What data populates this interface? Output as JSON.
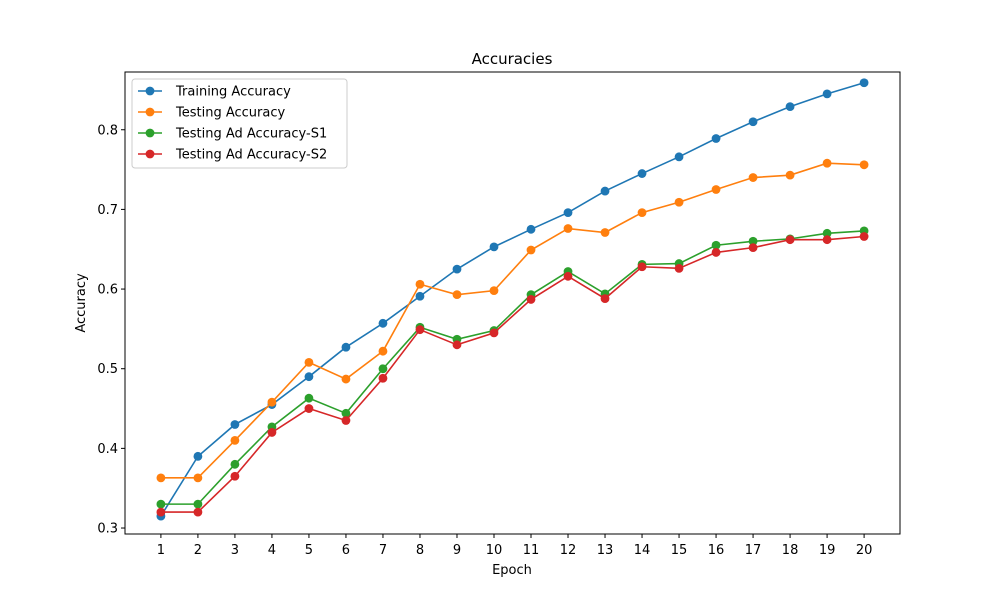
{
  "chart_data": {
    "type": "line",
    "title": "Accuracies",
    "xlabel": "Epoch",
    "ylabel": "Accuracy",
    "x": [
      1,
      2,
      3,
      4,
      5,
      6,
      7,
      8,
      9,
      10,
      11,
      12,
      13,
      14,
      15,
      16,
      17,
      18,
      19,
      20
    ],
    "xlim": [
      0.03,
      20.97
    ],
    "ylim": [
      0.2925,
      0.8725
    ],
    "yticks": [
      0.3,
      0.4,
      0.5,
      0.6,
      0.7,
      0.8
    ],
    "ytick_labels": [
      "0.3",
      "0.4",
      "0.5",
      "0.6",
      "0.7",
      "0.8"
    ],
    "xtick_labels": [
      "1",
      "2",
      "3",
      "4",
      "5",
      "6",
      "7",
      "8",
      "9",
      "10",
      "11",
      "12",
      "13",
      "14",
      "15",
      "16",
      "17",
      "18",
      "19",
      "20"
    ],
    "grid": false,
    "legend_position": "upper-left",
    "series": [
      {
        "name": "Training Accuracy",
        "color": "#1f77b4",
        "values": [
          0.315,
          0.39,
          0.43,
          0.455,
          0.49,
          0.527,
          0.557,
          0.591,
          0.625,
          0.653,
          0.675,
          0.696,
          0.723,
          0.745,
          0.766,
          0.789,
          0.81,
          0.829,
          0.845,
          0.859
        ]
      },
      {
        "name": "Testing Accuracy",
        "color": "#ff7f0e",
        "values": [
          0.363,
          0.363,
          0.41,
          0.458,
          0.508,
          0.487,
          0.522,
          0.606,
          0.593,
          0.598,
          0.649,
          0.676,
          0.671,
          0.696,
          0.709,
          0.725,
          0.74,
          0.743,
          0.758,
          0.756
        ]
      },
      {
        "name": "Testing Ad Accuracy-S1",
        "color": "#2ca02c",
        "values": [
          0.33,
          0.33,
          0.38,
          0.427,
          0.463,
          0.444,
          0.5,
          0.552,
          0.537,
          0.548,
          0.593,
          0.622,
          0.594,
          0.631,
          0.632,
          0.655,
          0.66,
          0.663,
          0.67,
          0.673
        ]
      },
      {
        "name": "Testing Ad Accuracy-S2",
        "color": "#d62728",
        "values": [
          0.32,
          0.32,
          0.365,
          0.42,
          0.45,
          0.435,
          0.488,
          0.549,
          0.53,
          0.545,
          0.587,
          0.616,
          0.588,
          0.628,
          0.626,
          0.646,
          0.652,
          0.662,
          0.662,
          0.666
        ]
      }
    ]
  }
}
